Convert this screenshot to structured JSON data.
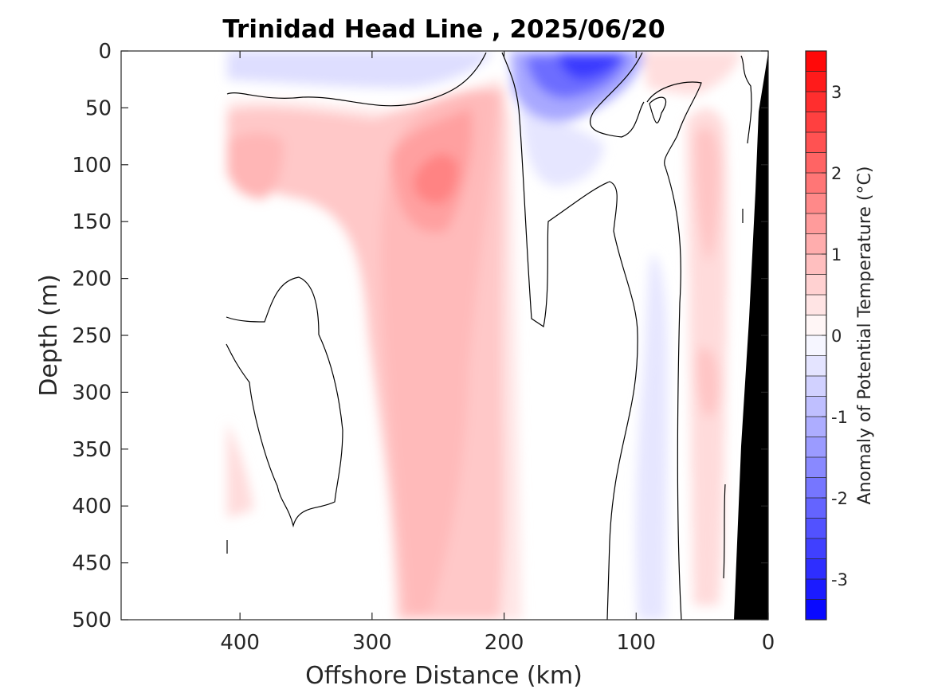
{
  "chart_data": {
    "type": "heatmap",
    "title": "Trinidad Head Line , 2025/06/20",
    "xlabel": "Offshore Distance (km)",
    "ylabel": "Depth (m)",
    "xlim": [
      490,
      0
    ],
    "ylim": [
      0,
      500
    ],
    "x_reversed": true,
    "y_reversed": true,
    "x_ticks": [
      400,
      300,
      200,
      100,
      0
    ],
    "x_tick_labels": [
      "400",
      "300",
      "200",
      "100",
      "0"
    ],
    "y_ticks": [
      0,
      50,
      100,
      150,
      200,
      250,
      300,
      350,
      400,
      450,
      500
    ],
    "y_tick_labels": [
      "0",
      "50",
      "100",
      "150",
      "200",
      "250",
      "300",
      "350",
      "400",
      "450",
      "500"
    ],
    "colorbar": {
      "label": "Anomaly of Potential Temperature (°C)",
      "range": [
        -3.5,
        3.5
      ],
      "step": 0.25,
      "ticks": [
        3,
        2,
        1,
        0,
        -1,
        -2,
        -3
      ],
      "tick_labels": [
        "3",
        "2",
        "1",
        "0",
        "-1",
        "-2",
        "-3"
      ],
      "low_color": "#0000ff",
      "mid_color": "#ffffff",
      "high_color": "#ff0000"
    },
    "data_coverage_x": [
      410,
      0
    ],
    "zero_contour_color": "#000000",
    "seafloor_color": "#000000",
    "anomaly_features": [
      {
        "name": "warm core",
        "x_km": 255,
        "depth_m": 120,
        "anomaly_c": 1.5
      },
      {
        "name": "warm subsurface tongue",
        "x_km": 240,
        "depth_m": 350,
        "anomaly_c": 0.8
      },
      {
        "name": "warm western shallow",
        "x_km": 395,
        "depth_m": 105,
        "anomaly_c": 1.1
      },
      {
        "name": "cold surface core",
        "x_km": 130,
        "depth_m": 8,
        "anomaly_c": -2.5
      },
      {
        "name": "cold western surface",
        "x_km": 345,
        "depth_m": 15,
        "anomaly_c": -0.4
      },
      {
        "name": "cold deep band",
        "x_km": 88,
        "depth_m": 420,
        "anomaly_c": -0.35
      },
      {
        "name": "warm nearshore",
        "x_km": 45,
        "depth_m": 200,
        "anomaly_c": 0.6
      }
    ]
  }
}
